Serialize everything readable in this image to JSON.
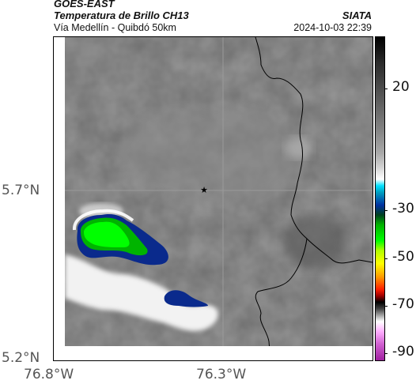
{
  "header": {
    "satellite": "GOES-EAST",
    "product": "Temperatura de Brillo CH13",
    "location": "Vía Medellín - Quibdó 50km",
    "organization": "SIATA",
    "timestamp": "2024-10-03 22:39"
  },
  "map": {
    "lat_labels": [
      "5.7°N",
      "5.2°N"
    ],
    "lon_labels": [
      "76.8°W",
      "76.3°W"
    ],
    "marker_icon": "star-icon",
    "boundary_color": "#000000",
    "gridline_color": "#9a9a9a"
  },
  "colorbar": {
    "ticks": [
      "20",
      "-30",
      "-50",
      "-70",
      "-90"
    ],
    "unit_hint": "",
    "colors": [
      "#000000",
      "#2b2b2b",
      "#555555",
      "#808080",
      "#aaaaaa",
      "#d0d0d0",
      "#ffffff",
      "#00b7ff",
      "#0030a0",
      "#00ff00",
      "#00ff00",
      "#ffff00",
      "#ff8000",
      "#ff0000",
      "#000000",
      "#ffffff",
      "#ffb0ff",
      "#a020a0"
    ]
  }
}
